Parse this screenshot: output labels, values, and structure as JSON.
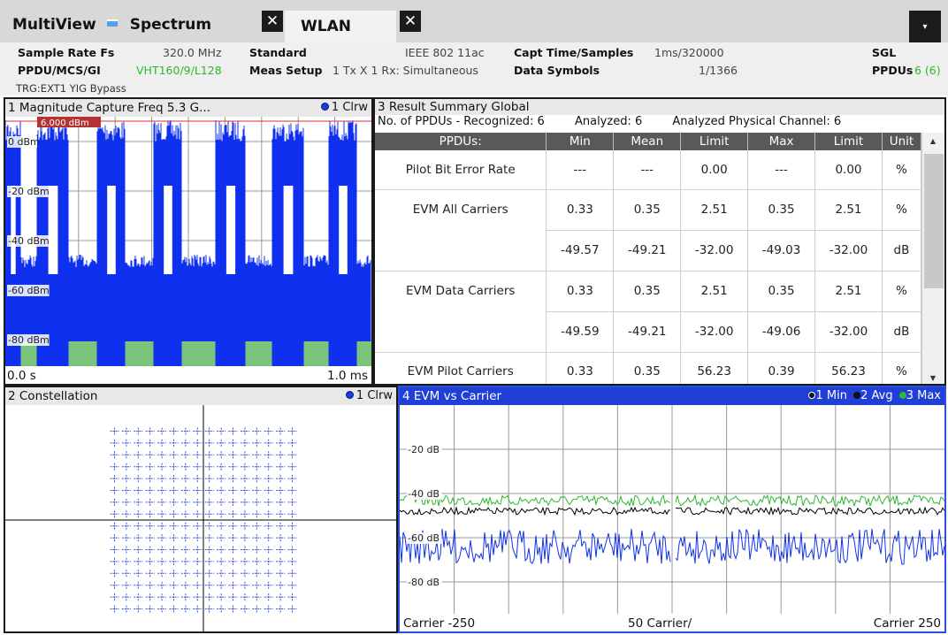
{
  "tabs": {
    "app_label": "MultiView",
    "spectrum_label": "Spectrum",
    "wlan_label": "WLAN",
    "close_glyph": "✕",
    "menu_glyph": "▾"
  },
  "header": {
    "sample_rate_label": "Sample Rate Fs",
    "sample_rate_value": "320.0 MHz",
    "standard_label": "Standard",
    "standard_value": "IEEE 802 11ac",
    "capt_label": "Capt Time/Samples",
    "capt_value": "1ms/320000",
    "sgl": "SGL",
    "ppdu_label": "PPDU/MCS/GI",
    "ppdu_value": "VHT160/9/L128",
    "meas_label": "Meas Setup",
    "meas_value": "1 Tx X 1 Rx: Simultaneous",
    "data_symbols_label": "Data Symbols",
    "data_symbols_value": "1/1366",
    "ppdus_label": "PPDUs",
    "ppdus_value": "6 (6)",
    "trg": "TRG:EXT1 YIG Bypass"
  },
  "panel1": {
    "title": "1 Magnitude Capture  Freq 5.3 G...",
    "trace": "1 Clrw",
    "ref_level": "6.000 dBm",
    "y_labels": [
      "0 dBm",
      "-20 dBm",
      "-40 dBm",
      "-60 dBm",
      "-80 dBm"
    ],
    "x_start": "0.0 s",
    "x_end": "1.0 ms"
  },
  "panel3": {
    "title": "3 Result Summary Global",
    "recognized": "No. of PPDUs - Recognized: 6",
    "analyzed": "Analyzed: 6",
    "analyzed_phys": "Analyzed Physical Channel: 6",
    "columns": [
      "PPDUs:",
      "Min",
      "Mean",
      "Limit",
      "Max",
      "Limit",
      "Unit"
    ],
    "rows": [
      {
        "label": "Pilot Bit Error Rate",
        "min": "---",
        "mean": "---",
        "limit": "0.00",
        "max": "---",
        "limit2": "0.00",
        "unit": "%"
      },
      {
        "label": "EVM All Carriers",
        "min": "0.33",
        "mean": "0.35",
        "limit": "2.51",
        "max": "0.35",
        "limit2": "2.51",
        "unit": "%"
      },
      {
        "label": "",
        "min": "-49.57",
        "mean": "-49.21",
        "limit": "-32.00",
        "max": "-49.03",
        "limit2": "-32.00",
        "unit": "dB"
      },
      {
        "label": "EVM Data Carriers",
        "min": "0.33",
        "mean": "0.35",
        "limit": "2.51",
        "max": "0.35",
        "limit2": "2.51",
        "unit": "%"
      },
      {
        "label": "",
        "min": "-49.59",
        "mean": "-49.21",
        "limit": "-32.00",
        "max": "-49.06",
        "limit2": "-32.00",
        "unit": "dB"
      },
      {
        "label": "EVM Pilot Carriers",
        "min": "0.33",
        "mean": "0.35",
        "limit": "56.23",
        "max": "0.39",
        "limit2": "56.23",
        "unit": "%"
      }
    ]
  },
  "panel2": {
    "title": "2 Constellation",
    "trace": "1 Clrw"
  },
  "panel4": {
    "title": "4 EVM vs Carrier",
    "legend_min": "1 Min",
    "legend_avg": "2 Avg",
    "legend_max": "3 Max",
    "y_labels": [
      "-20 dB",
      "-40 dB",
      "-60 dB",
      "-80 dB"
    ],
    "x_start": "Carrier -250",
    "x_mid": "50 Carrier/",
    "x_end": "Carrier 250"
  },
  "colors": {
    "trace_blue": "#1030f0",
    "green": "#2db82d",
    "black": "#000000",
    "active_title": "#1f3fd6"
  }
}
